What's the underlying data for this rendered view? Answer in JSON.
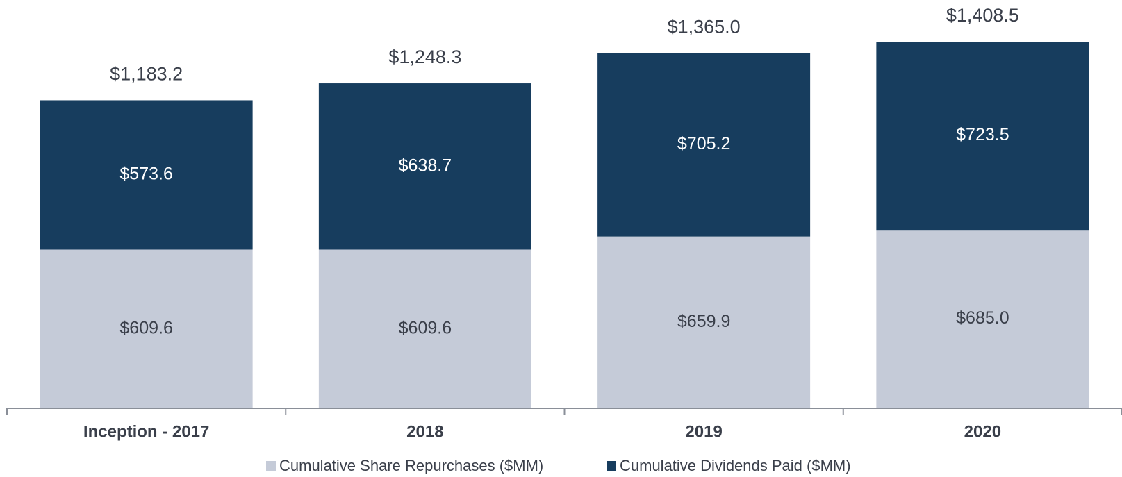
{
  "chart_data": {
    "type": "stacked_bar",
    "categories": [
      "Inception - 2017",
      "2018",
      "2019",
      "2020"
    ],
    "series": [
      {
        "name": "Cumulative Share Repurchases ($MM)",
        "color": "#c5cbd8",
        "values": [
          609.6,
          609.6,
          659.9,
          685.0
        ],
        "value_labels": [
          "$609.6",
          "$609.6",
          "$659.9",
          "$685.0"
        ]
      },
      {
        "name": "Cumulative Dividends Paid ($MM)",
        "color": "#173d5e",
        "values": [
          573.6,
          638.7,
          705.2,
          723.5
        ],
        "value_labels": [
          "$573.6",
          "$638.7",
          "$705.2",
          "$723.5"
        ]
      }
    ],
    "totals": [
      1183.2,
      1248.3,
      1365.0,
      1408.5
    ],
    "total_labels": [
      "$1,183.2",
      "$1,248.3",
      "$1,365.0",
      "$1,408.5"
    ],
    "legend": "bottom"
  }
}
